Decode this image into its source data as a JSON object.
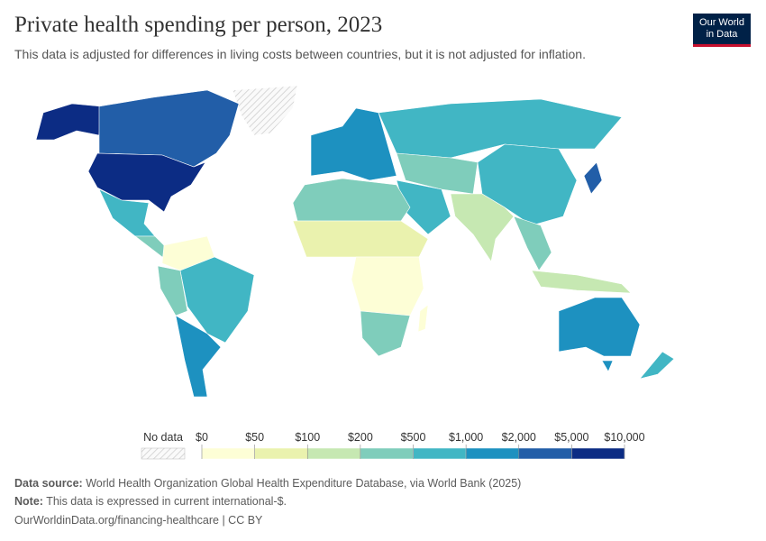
{
  "header": {
    "title": "Private health spending per person, 2023",
    "subtitle": "This data is adjusted for differences in living costs between countries, but it is not adjusted for inflation.",
    "logo": [
      "Our World",
      "in Data"
    ]
  },
  "legend": {
    "no_data_label": "No data",
    "ticks": [
      "$0",
      "$50",
      "$100",
      "$200",
      "$500",
      "$1,000",
      "$2,000",
      "$5,000",
      "$10,000"
    ],
    "colors": [
      "#fdfed6",
      "#eaf2ae",
      "#c6e8b2",
      "#7fcdbb",
      "#41b6c4",
      "#1d91c0",
      "#225ea8",
      "#0c2c84"
    ]
  },
  "footer": {
    "source_label": "Data source:",
    "source": "World Health Organization Global Health Expenditure Database, via World Bank (2025)",
    "note_label": "Note:",
    "note": "This data is expressed in current international-$.",
    "url": "OurWorldinData.org/financing-healthcare | CC BY"
  }
}
